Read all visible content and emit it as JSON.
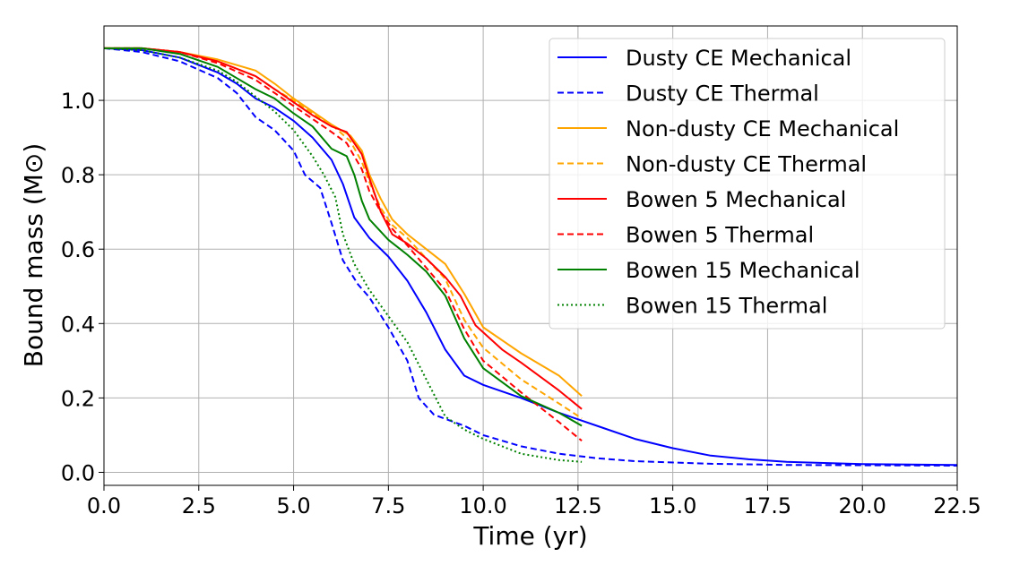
{
  "chart_data": {
    "type": "line",
    "title": "",
    "xlabel": "Time (yr)",
    "ylabel": "Bound mass (M⊙)",
    "xlim": [
      0,
      22.5
    ],
    "ylim": [
      -0.035,
      1.2
    ],
    "xticks": [
      0,
      2.5,
      5,
      7.5,
      10,
      12.5,
      15,
      17.5,
      20,
      22.5
    ],
    "xtick_labels": [
      "0.0",
      "2.5",
      "5.0",
      "7.5",
      "10.0",
      "12.5",
      "15.0",
      "17.5",
      "20.0",
      "22.5"
    ],
    "yticks": [
      0,
      0.2,
      0.4,
      0.6,
      0.8,
      1.0
    ],
    "ytick_labels": [
      "0.0",
      "0.2",
      "0.4",
      "0.6",
      "0.8",
      "1.0"
    ],
    "grid": true,
    "legend_position": "top-right",
    "series": [
      {
        "name": "Dusty CE Mechanical",
        "color": "#0000ff",
        "dash": "solid",
        "points": [
          [
            0,
            1.14
          ],
          [
            1,
            1.135
          ],
          [
            2,
            1.115
          ],
          [
            3,
            1.075
          ],
          [
            3.5,
            1.045
          ],
          [
            4,
            1.005
          ],
          [
            4.5,
            0.98
          ],
          [
            5,
            0.945
          ],
          [
            5.5,
            0.9
          ],
          [
            6,
            0.84
          ],
          [
            6.3,
            0.775
          ],
          [
            6.6,
            0.685
          ],
          [
            7,
            0.63
          ],
          [
            7.5,
            0.58
          ],
          [
            8,
            0.515
          ],
          [
            8.5,
            0.43
          ],
          [
            9,
            0.33
          ],
          [
            9.5,
            0.26
          ],
          [
            10,
            0.235
          ],
          [
            11,
            0.2
          ],
          [
            12,
            0.16
          ],
          [
            13,
            0.125
          ],
          [
            14,
            0.09
          ],
          [
            15,
            0.065
          ],
          [
            16,
            0.045
          ],
          [
            17,
            0.035
          ],
          [
            18,
            0.028
          ],
          [
            20,
            0.022
          ],
          [
            22.5,
            0.02
          ]
        ]
      },
      {
        "name": "Dusty CE Thermal",
        "color": "#0000ff",
        "dash": "dashed",
        "points": [
          [
            0,
            1.14
          ],
          [
            1,
            1.13
          ],
          [
            2,
            1.105
          ],
          [
            3,
            1.06
          ],
          [
            3.5,
            1.02
          ],
          [
            4,
            0.955
          ],
          [
            4.5,
            0.92
          ],
          [
            5,
            0.865
          ],
          [
            5.3,
            0.8
          ],
          [
            5.7,
            0.765
          ],
          [
            6,
            0.67
          ],
          [
            6.3,
            0.57
          ],
          [
            6.7,
            0.505
          ],
          [
            7,
            0.47
          ],
          [
            7.5,
            0.39
          ],
          [
            8,
            0.3
          ],
          [
            8.3,
            0.2
          ],
          [
            8.7,
            0.155
          ],
          [
            9.5,
            0.125
          ],
          [
            10,
            0.1
          ],
          [
            11,
            0.07
          ],
          [
            12,
            0.05
          ],
          [
            13,
            0.038
          ],
          [
            14,
            0.03
          ],
          [
            16,
            0.023
          ],
          [
            18,
            0.02
          ],
          [
            22.5,
            0.018
          ]
        ]
      },
      {
        "name": "Non-dusty CE Mechanical",
        "color": "#ffa500",
        "dash": "solid",
        "points": [
          [
            0,
            1.14
          ],
          [
            1,
            1.14
          ],
          [
            2,
            1.13
          ],
          [
            3,
            1.11
          ],
          [
            4,
            1.08
          ],
          [
            4.5,
            1.045
          ],
          [
            5,
            1.005
          ],
          [
            5.5,
            0.97
          ],
          [
            6,
            0.935
          ],
          [
            6.5,
            0.905
          ],
          [
            6.8,
            0.865
          ],
          [
            7,
            0.8
          ],
          [
            7.3,
            0.735
          ],
          [
            7.6,
            0.68
          ],
          [
            8,
            0.64
          ],
          [
            8.5,
            0.6
          ],
          [
            9,
            0.56
          ],
          [
            9.5,
            0.48
          ],
          [
            10,
            0.39
          ],
          [
            11,
            0.32
          ],
          [
            12,
            0.26
          ],
          [
            12.6,
            0.205
          ]
        ]
      },
      {
        "name": "Non-dusty CE Thermal",
        "color": "#ffa500",
        "dash": "dashed",
        "points": [
          [
            0,
            1.14
          ],
          [
            1,
            1.14
          ],
          [
            2,
            1.13
          ],
          [
            3,
            1.105
          ],
          [
            4,
            1.065
          ],
          [
            4.5,
            1.03
          ],
          [
            5,
            1.0
          ],
          [
            5.5,
            0.965
          ],
          [
            6,
            0.935
          ],
          [
            6.5,
            0.89
          ],
          [
            6.8,
            0.835
          ],
          [
            7,
            0.78
          ],
          [
            7.3,
            0.71
          ],
          [
            7.6,
            0.665
          ],
          [
            8,
            0.63
          ],
          [
            8.5,
            0.575
          ],
          [
            9,
            0.52
          ],
          [
            9.5,
            0.41
          ],
          [
            10,
            0.335
          ],
          [
            11,
            0.25
          ],
          [
            12,
            0.185
          ],
          [
            12.6,
            0.145
          ]
        ]
      },
      {
        "name": "Bowen 5 Mechanical",
        "color": "#ff0000",
        "dash": "solid",
        "points": [
          [
            0,
            1.14
          ],
          [
            1,
            1.14
          ],
          [
            2,
            1.13
          ],
          [
            3,
            1.105
          ],
          [
            4,
            1.065
          ],
          [
            4.5,
            1.03
          ],
          [
            5,
            0.995
          ],
          [
            5.5,
            0.96
          ],
          [
            6,
            0.93
          ],
          [
            6.4,
            0.915
          ],
          [
            6.8,
            0.855
          ],
          [
            7,
            0.79
          ],
          [
            7.3,
            0.7
          ],
          [
            7.6,
            0.64
          ],
          [
            8,
            0.615
          ],
          [
            8.5,
            0.575
          ],
          [
            9,
            0.525
          ],
          [
            9.4,
            0.475
          ],
          [
            9.8,
            0.395
          ],
          [
            10.5,
            0.33
          ],
          [
            11,
            0.295
          ],
          [
            12,
            0.22
          ],
          [
            12.6,
            0.17
          ]
        ]
      },
      {
        "name": "Bowen 5 Thermal",
        "color": "#ff0000",
        "dash": "dashed",
        "points": [
          [
            0,
            1.14
          ],
          [
            1,
            1.14
          ],
          [
            2,
            1.13
          ],
          [
            3,
            1.1
          ],
          [
            4,
            1.055
          ],
          [
            4.5,
            1.02
          ],
          [
            5,
            0.985
          ],
          [
            5.5,
            0.95
          ],
          [
            6,
            0.915
          ],
          [
            6.4,
            0.885
          ],
          [
            6.8,
            0.815
          ],
          [
            7,
            0.755
          ],
          [
            7.3,
            0.7
          ],
          [
            7.6,
            0.655
          ],
          [
            8,
            0.61
          ],
          [
            8.5,
            0.55
          ],
          [
            9,
            0.49
          ],
          [
            9.5,
            0.385
          ],
          [
            10,
            0.3
          ],
          [
            11,
            0.215
          ],
          [
            12,
            0.135
          ],
          [
            12.6,
            0.085
          ]
        ]
      },
      {
        "name": "Bowen 15 Mechanical",
        "color": "#008000",
        "dash": "solid",
        "points": [
          [
            0,
            1.14
          ],
          [
            1,
            1.14
          ],
          [
            2,
            1.125
          ],
          [
            3,
            1.09
          ],
          [
            3.5,
            1.06
          ],
          [
            4,
            1.03
          ],
          [
            4.5,
            1.005
          ],
          [
            5,
            0.965
          ],
          [
            5.5,
            0.93
          ],
          [
            6,
            0.87
          ],
          [
            6.4,
            0.85
          ],
          [
            6.6,
            0.8
          ],
          [
            6.8,
            0.73
          ],
          [
            7,
            0.68
          ],
          [
            7.5,
            0.625
          ],
          [
            8,
            0.585
          ],
          [
            8.5,
            0.54
          ],
          [
            9,
            0.475
          ],
          [
            9.5,
            0.36
          ],
          [
            10,
            0.28
          ],
          [
            11,
            0.205
          ],
          [
            12,
            0.16
          ],
          [
            12.6,
            0.125
          ]
        ]
      },
      {
        "name": "Bowen 15 Thermal",
        "color": "#008000",
        "dash": "dotted",
        "points": [
          [
            0,
            1.14
          ],
          [
            1,
            1.135
          ],
          [
            2,
            1.115
          ],
          [
            3,
            1.08
          ],
          [
            3.5,
            1.05
          ],
          [
            4,
            1.01
          ],
          [
            4.5,
            0.97
          ],
          [
            5,
            0.92
          ],
          [
            5.5,
            0.85
          ],
          [
            5.8,
            0.8
          ],
          [
            6.1,
            0.74
          ],
          [
            6.3,
            0.64
          ],
          [
            6.6,
            0.56
          ],
          [
            7,
            0.49
          ],
          [
            7.5,
            0.42
          ],
          [
            8,
            0.35
          ],
          [
            8.5,
            0.25
          ],
          [
            9,
            0.15
          ],
          [
            9.5,
            0.115
          ],
          [
            10,
            0.09
          ],
          [
            11,
            0.05
          ],
          [
            12,
            0.033
          ],
          [
            12.6,
            0.028
          ]
        ]
      }
    ]
  }
}
